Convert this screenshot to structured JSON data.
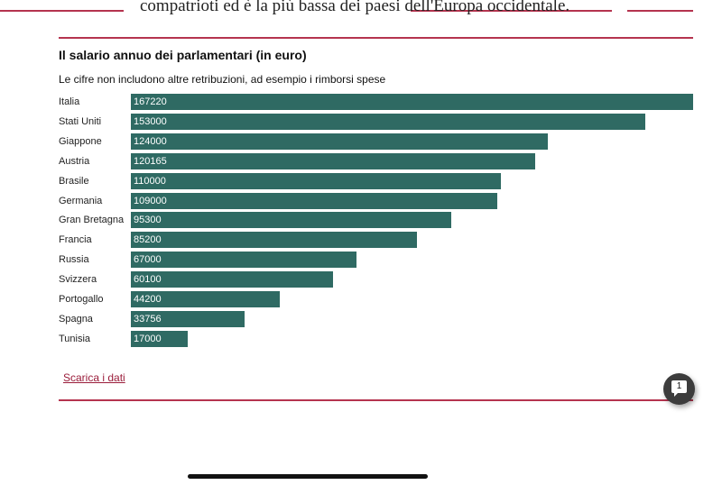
{
  "article_text": "compatrioti ed è la più bassa dei paesi dell'Europa occidentale.",
  "comment_count": "1",
  "download_link": "Scarica i dati",
  "chart_data": {
    "type": "bar",
    "orientation": "horizontal",
    "title": "Il salario annuo dei parlamentari (in euro)",
    "subtitle": "Le cifre non includono altre retribuzioni, ad esempio i rimborsi spese",
    "categories": [
      "Italia",
      "Stati Uniti",
      "Giappone",
      "Austria",
      "Brasile",
      "Germania",
      "Gran Bretagna",
      "Francia",
      "Russia",
      "Svizzera",
      "Portogallo",
      "Spagna",
      "Tunisia"
    ],
    "values": [
      167220,
      153000,
      124000,
      120165,
      110000,
      109000,
      95300,
      85200,
      67000,
      60100,
      44200,
      33756,
      17000
    ],
    "xlim": [
      0,
      167220
    ],
    "bar_color": "#2f6a63"
  }
}
